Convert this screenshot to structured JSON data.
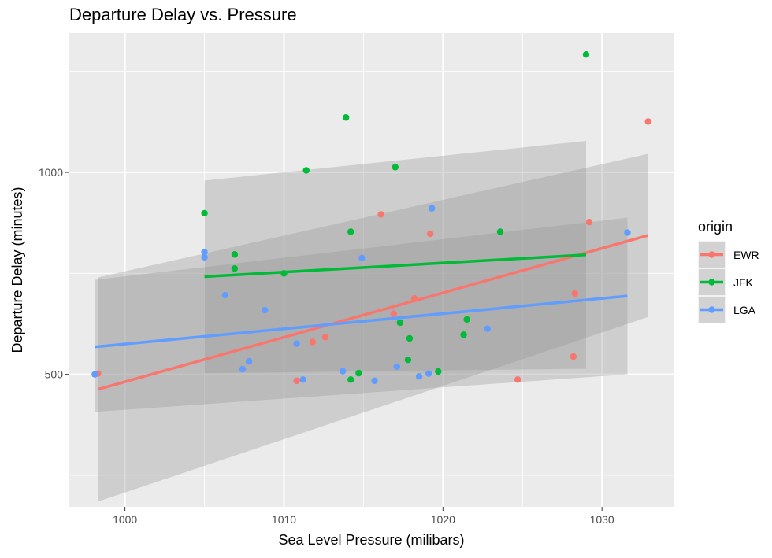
{
  "chart_data": {
    "type": "scatter",
    "title": "Departure Delay vs. Pressure",
    "xlabel": "Sea Level Pressure (milibars)",
    "ylabel": "Departure Delay (minutes)",
    "xlim": [
      996.5,
      1034.5
    ],
    "ylim": [
      172,
      1345
    ],
    "x_ticks": [
      1000,
      1010,
      1020,
      1030
    ],
    "y_ticks": [
      500,
      1000
    ],
    "y_minor_ticks": [
      250,
      750,
      1250
    ],
    "x_minor_ticks": [
      1005,
      1015,
      1025
    ],
    "grid": true,
    "legend": {
      "title": "origin",
      "position": "right",
      "entries": [
        "EWR",
        "JFK",
        "LGA"
      ]
    },
    "series": [
      {
        "name": "EWR",
        "color": "#F8766D",
        "points": [
          [
            998.3,
            502
          ],
          [
            1010.8,
            484
          ],
          [
            1011.8,
            580
          ],
          [
            1012.6,
            592
          ],
          [
            1016.1,
            896
          ],
          [
            1016.9,
            650
          ],
          [
            1018.2,
            688
          ],
          [
            1019.2,
            848
          ],
          [
            1024.7,
            487
          ],
          [
            1028.2,
            544
          ],
          [
            1028.3,
            700
          ],
          [
            1029.2,
            877
          ],
          [
            1032.9,
            1126
          ]
        ],
        "fit": {
          "x": [
            998.3,
            1032.9
          ],
          "y": [
            463,
            844
          ]
        },
        "ci": {
          "x": [
            998.3,
            1032.9
          ],
          "upper": [
            740,
            1046
          ],
          "lower": [
            185,
            642
          ]
        }
      },
      {
        "name": "JFK",
        "color": "#00BA38",
        "points": [
          [
            1005.0,
            899
          ],
          [
            1006.9,
            797
          ],
          [
            1006.9,
            762
          ],
          [
            1010.0,
            750
          ],
          [
            1011.4,
            1005
          ],
          [
            1013.9,
            1136
          ],
          [
            1014.2,
            853
          ],
          [
            1014.2,
            487
          ],
          [
            1014.7,
            503
          ],
          [
            1017.0,
            1013
          ],
          [
            1017.3,
            628
          ],
          [
            1017.8,
            536
          ],
          [
            1017.9,
            589
          ],
          [
            1019.7,
            507
          ],
          [
            1021.3,
            598
          ],
          [
            1021.5,
            636
          ],
          [
            1023.6,
            853
          ],
          [
            1029.0,
            1292
          ]
        ],
        "fit": {
          "x": [
            1005.0,
            1029.0
          ],
          "y": [
            742,
            796
          ]
        },
        "ci": {
          "x": [
            1005.0,
            1029.0
          ],
          "upper": [
            980,
            1078
          ],
          "lower": [
            503,
            514
          ]
        }
      },
      {
        "name": "LGA",
        "color": "#619CFF",
        "points": [
          [
            998.1,
            500
          ],
          [
            1005.0,
            803
          ],
          [
            1005.0,
            790
          ],
          [
            1006.3,
            696
          ],
          [
            1007.4,
            513
          ],
          [
            1007.8,
            532
          ],
          [
            1008.8,
            659
          ],
          [
            1010.8,
            576
          ],
          [
            1011.2,
            487
          ],
          [
            1013.7,
            508
          ],
          [
            1014.9,
            788
          ],
          [
            1015.7,
            484
          ],
          [
            1017.1,
            519
          ],
          [
            1018.5,
            495
          ],
          [
            1019.1,
            502
          ],
          [
            1019.3,
            911
          ],
          [
            1022.8,
            613
          ],
          [
            1031.6,
            851
          ]
        ],
        "fit": {
          "x": [
            998.1,
            1031.6
          ],
          "y": [
            568,
            694
          ]
        },
        "ci": {
          "x": [
            998.1,
            1031.6
          ],
          "upper": [
            734,
            888
          ],
          "lower": [
            407,
            500
          ]
        }
      }
    ]
  }
}
